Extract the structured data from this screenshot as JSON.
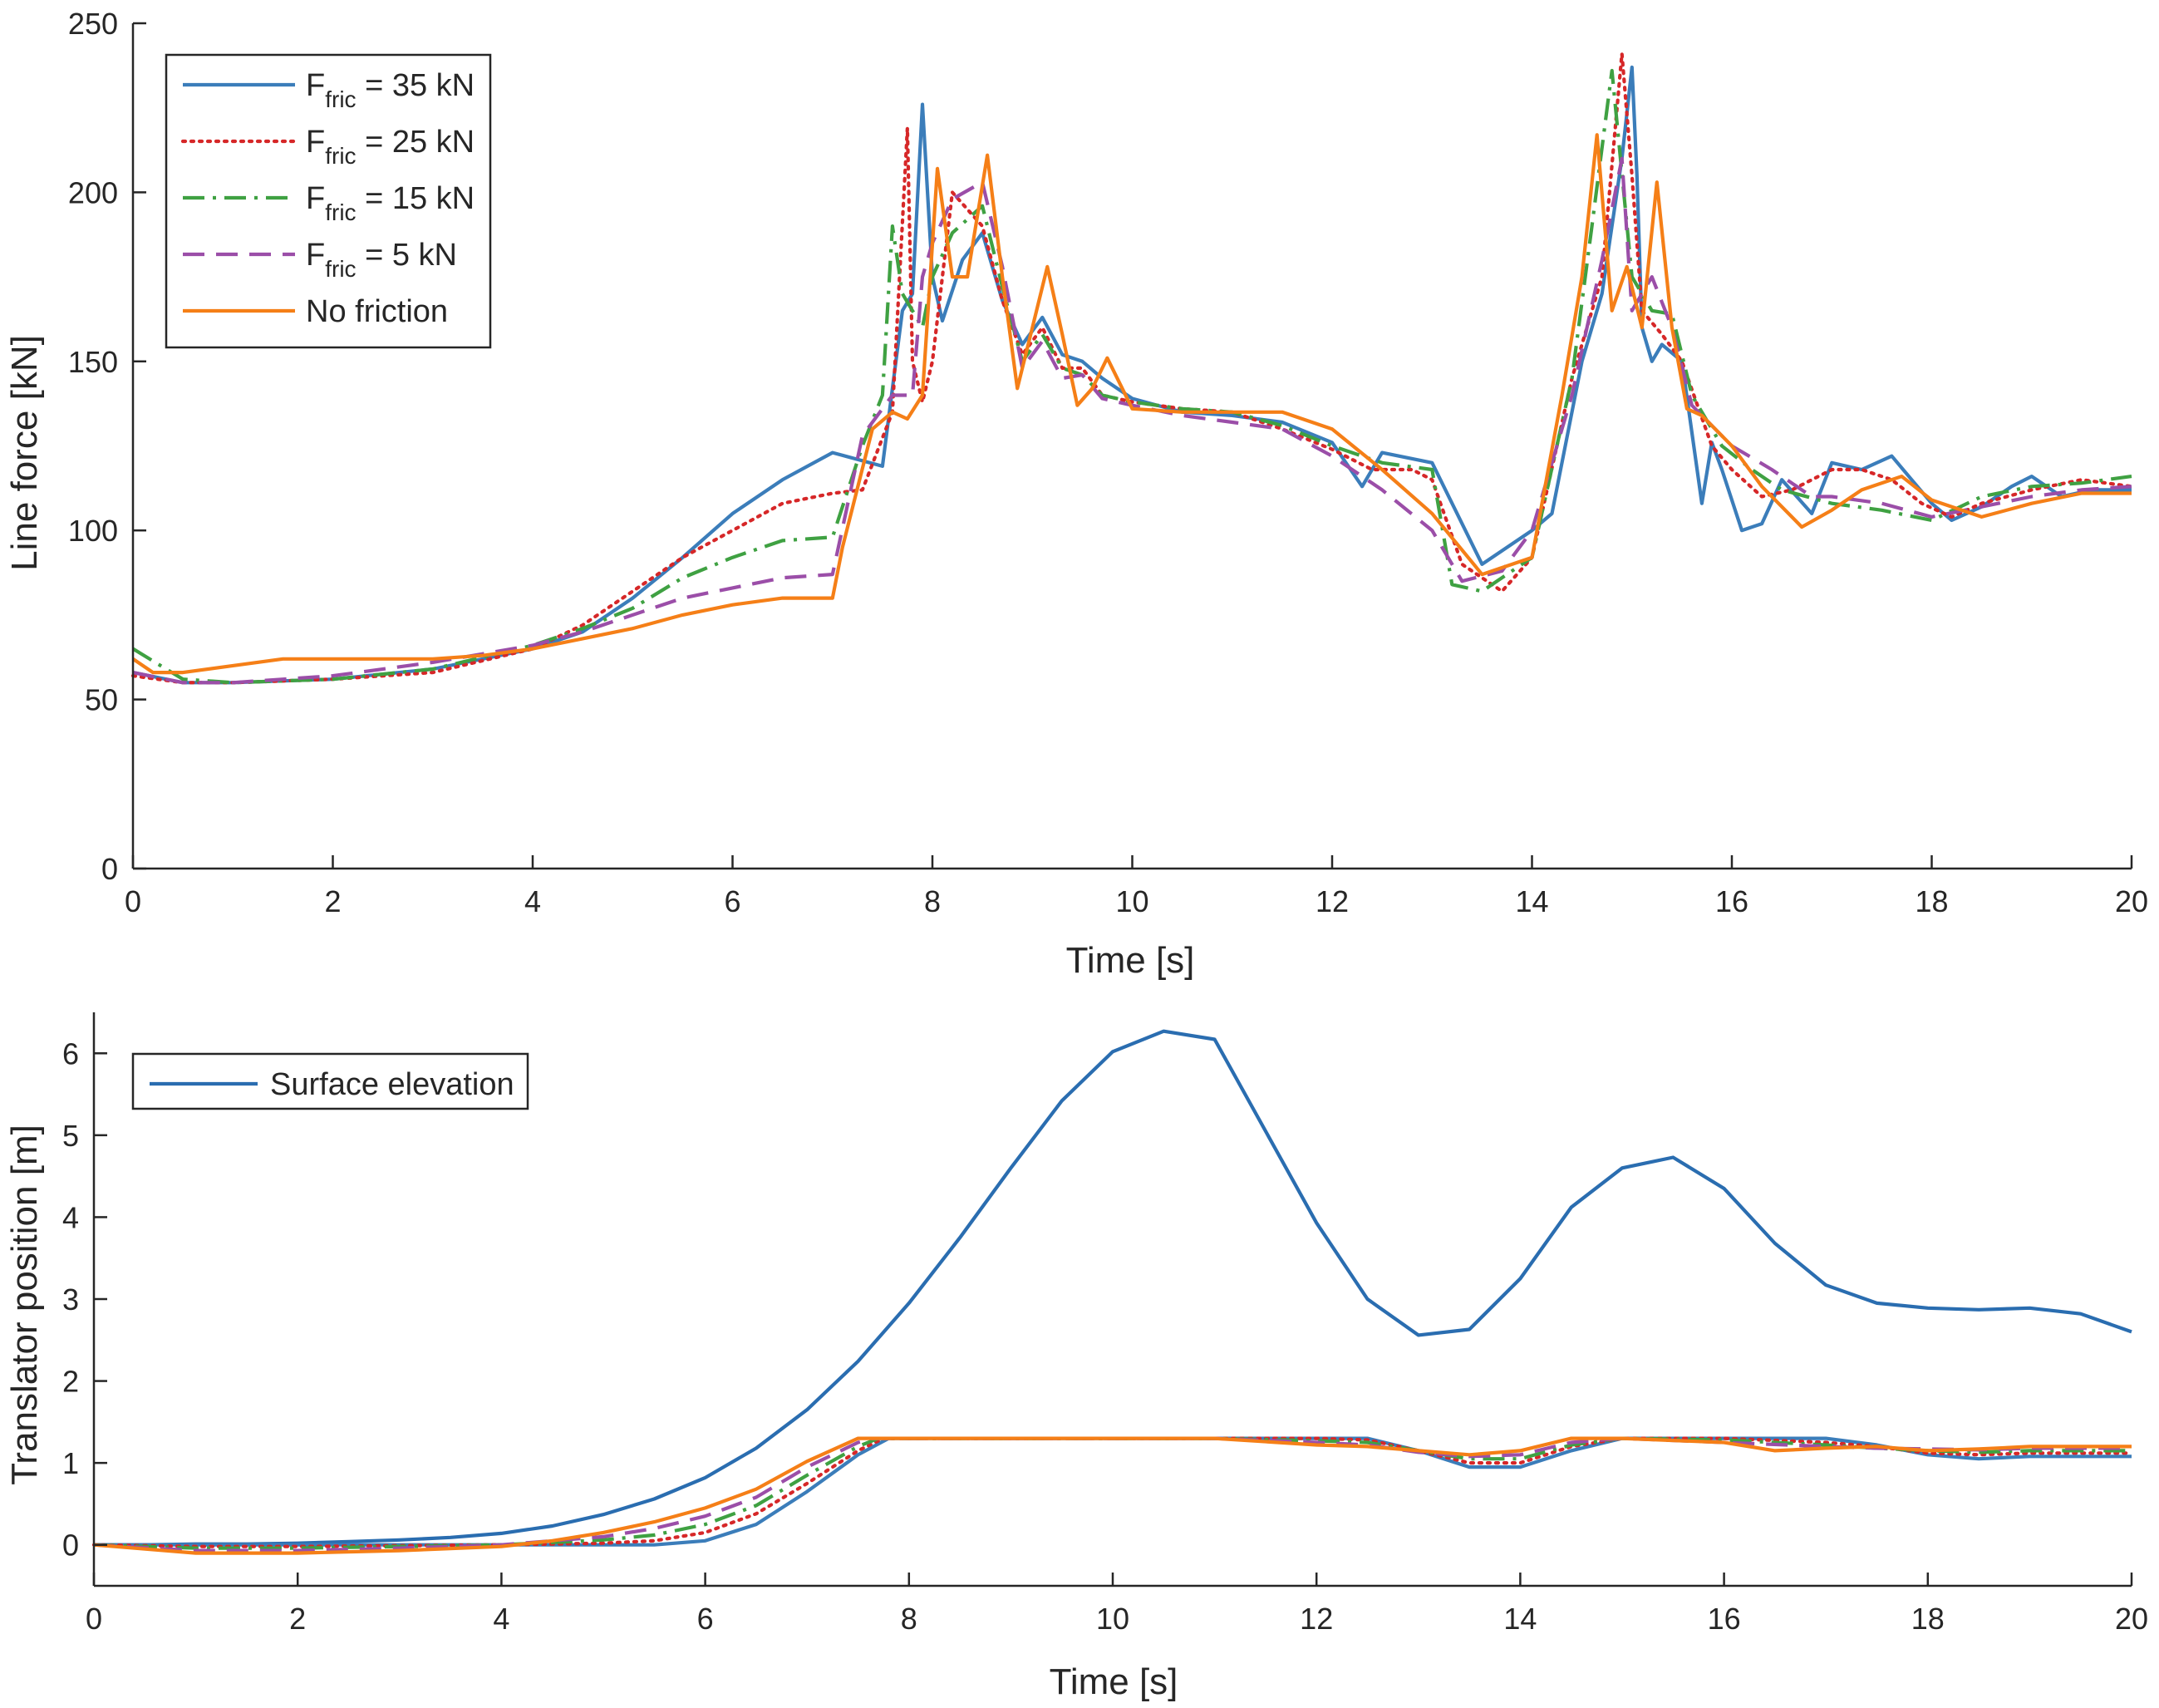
{
  "chart_data": [
    {
      "type": "line",
      "xlabel": "Time [s]",
      "ylabel": "Line force [kN]",
      "xlim": [
        0,
        20
      ],
      "ylim": [
        0,
        250
      ],
      "xticks": [
        "0",
        "2",
        "4",
        "6",
        "8",
        "10",
        "12",
        "14",
        "16",
        "18",
        "20"
      ],
      "yticks": [
        "0",
        "50",
        "100",
        "150",
        "200",
        "250"
      ],
      "legend": {
        "position": "top-left"
      },
      "series": [
        {
          "name": "F_fric = 35 kN",
          "label_main": "F",
          "label_sub": "fric",
          "label_rest": " = 35 kN",
          "color": "#3b7dba",
          "style": "solid",
          "x": [
            0,
            0.5,
            1,
            2,
            3,
            4,
            4.5,
            5,
            5.5,
            6,
            6.5,
            7,
            7.5,
            7.7,
            7.8,
            7.9,
            8,
            8.1,
            8.3,
            8.5,
            8.7,
            8.9,
            9.1,
            9.3,
            9.5,
            9.7,
            10,
            10.5,
            11,
            11.5,
            12,
            12.3,
            12.5,
            13,
            13.5,
            14,
            14.2,
            14.5,
            14.7,
            14.9,
            15,
            15.05,
            15.1,
            15.2,
            15.3,
            15.5,
            15.7,
            15.8,
            15.9,
            16.1,
            16.3,
            16.5,
            16.8,
            17,
            17.3,
            17.6,
            17.8,
            18,
            18.2,
            18.5,
            18.8,
            19,
            19.3,
            19.6,
            20
          ],
          "y": [
            58,
            55,
            55,
            56,
            59,
            65,
            70,
            80,
            92,
            105,
            115,
            123,
            119,
            165,
            170,
            226,
            175,
            162,
            180,
            188,
            168,
            155,
            163,
            152,
            150,
            145,
            139,
            135,
            134,
            132,
            126,
            113,
            123,
            120,
            90,
            100,
            105,
            150,
            170,
            210,
            237,
            205,
            160,
            150,
            155,
            150,
            108,
            126,
            118,
            100,
            102,
            115,
            105,
            120,
            118,
            122,
            115,
            108,
            103,
            107,
            113,
            116,
            110,
            112,
            112
          ]
        },
        {
          "name": "F_fric = 25 kN",
          "label_main": "F",
          "label_sub": "fric",
          "label_rest": " = 25 kN",
          "color": "#d62728",
          "style": "dotted",
          "x": [
            0,
            0.5,
            1,
            2,
            3,
            4,
            4.5,
            5,
            5.5,
            6,
            6.5,
            7,
            7.3,
            7.6,
            7.75,
            7.8,
            7.9,
            8,
            8.2,
            8.5,
            8.7,
            8.9,
            9.1,
            9.3,
            9.5,
            9.7,
            10,
            10.5,
            11,
            11.5,
            12,
            12.4,
            12.8,
            13,
            13.3,
            13.7,
            14,
            14.4,
            14.7,
            14.9,
            15,
            15.1,
            15.3,
            15.5,
            15.8,
            16,
            16.3,
            16.6,
            17,
            17.3,
            17.6,
            17.9,
            18.2,
            18.5,
            19,
            19.5,
            20
          ],
          "y": [
            57,
            55,
            55,
            56,
            58,
            65,
            72,
            82,
            92,
            100,
            108,
            111,
            112,
            135,
            219,
            150,
            138,
            150,
            200,
            190,
            168,
            152,
            160,
            148,
            148,
            140,
            138,
            136,
            135,
            130,
            124,
            118,
            118,
            115,
            90,
            82,
            92,
            145,
            175,
            241,
            205,
            165,
            158,
            150,
            125,
            118,
            110,
            112,
            118,
            118,
            115,
            108,
            104,
            108,
            112,
            115,
            113
          ]
        },
        {
          "name": "F_fric = 15 kN",
          "label_main": "F",
          "label_sub": "fric",
          "label_rest": " = 15 kN",
          "color": "#3fa142",
          "style": "dashdot",
          "x": [
            0,
            0.5,
            1,
            2,
            3,
            4,
            4.5,
            5,
            5.5,
            6,
            6.5,
            7,
            7.3,
            7.5,
            7.6,
            7.7,
            7.8,
            7.9,
            8,
            8.2,
            8.5,
            8.7,
            8.9,
            9.1,
            9.3,
            9.5,
            9.7,
            10,
            10.5,
            11,
            11.5,
            12,
            12.5,
            13,
            13.2,
            13.5,
            14,
            14.4,
            14.6,
            14.8,
            15,
            15.2,
            15.4,
            15.6,
            15.9,
            16.2,
            16.5,
            17,
            17.5,
            18,
            18.5,
            19,
            19.5,
            20
          ],
          "y": [
            65,
            56,
            55,
            56,
            59,
            66,
            71,
            77,
            86,
            92,
            97,
            98,
            125,
            140,
            190,
            170,
            165,
            160,
            175,
            188,
            196,
            172,
            150,
            158,
            148,
            146,
            140,
            138,
            136,
            135,
            131,
            125,
            120,
            118,
            84,
            82,
            92,
            145,
            190,
            236,
            175,
            165,
            164,
            140,
            125,
            118,
            112,
            108,
            106,
            103,
            110,
            113,
            114,
            116
          ]
        },
        {
          "name": "F_fric = 5 kN",
          "label_main": "F",
          "label_sub": "fric",
          "label_rest": " = 5 kN",
          "color": "#9b4ea8",
          "style": "dashed",
          "x": [
            0,
            0.5,
            1,
            2,
            3,
            4,
            4.5,
            5,
            5.5,
            6,
            6.5,
            7,
            7.3,
            7.6,
            7.8,
            7.9,
            8,
            8.2,
            8.5,
            8.7,
            8.9,
            9.1,
            9.3,
            9.5,
            9.7,
            10,
            10.5,
            11,
            11.5,
            12,
            12.5,
            13,
            13.3,
            13.7,
            14,
            14.4,
            14.7,
            14.9,
            15,
            15.2,
            15.4,
            15.6,
            16,
            16.4,
            16.8,
            17,
            17.5,
            18,
            18.5,
            19,
            19.5,
            20
          ],
          "y": [
            58,
            55,
            55,
            57,
            61,
            66,
            70,
            75,
            80,
            83,
            86,
            87,
            128,
            140,
            140,
            175,
            185,
            198,
            203,
            178,
            148,
            156,
            145,
            146,
            139,
            137,
            134,
            132,
            130,
            122,
            112,
            100,
            85,
            88,
            100,
            140,
            180,
            210,
            165,
            175,
            160,
            137,
            125,
            118,
            110,
            110,
            108,
            104,
            107,
            110,
            112,
            113
          ]
        },
        {
          "name": "No friction",
          "label_main": "No friction",
          "label_sub": "",
          "label_rest": "",
          "color": "#f57f17",
          "style": "solid",
          "x": [
            0,
            0.2,
            0.5,
            1,
            1.5,
            2,
            2.5,
            3,
            3.5,
            4,
            4.5,
            5,
            5.5,
            6,
            6.5,
            6.9,
            7,
            7.1,
            7.4,
            7.6,
            7.75,
            7.9,
            8.05,
            8.2,
            8.35,
            8.55,
            8.7,
            8.85,
            9,
            9.15,
            9.3,
            9.45,
            9.6,
            9.75,
            10,
            10.5,
            11,
            11.5,
            12,
            12.5,
            13,
            13.5,
            14,
            14.3,
            14.5,
            14.65,
            14.8,
            14.95,
            15.1,
            15.25,
            15.4,
            15.55,
            15.7,
            16,
            16.3,
            16.7,
            17,
            17.3,
            17.7,
            18,
            18.5,
            19,
            19.5,
            20
          ],
          "y": [
            62,
            58,
            58,
            60,
            62,
            62,
            62,
            62,
            63,
            65,
            68,
            71,
            75,
            78,
            80,
            80,
            80,
            95,
            130,
            135,
            133,
            140,
            207,
            175,
            175,
            211,
            175,
            142,
            160,
            178,
            158,
            137,
            142,
            151,
            136,
            135,
            135,
            135,
            130,
            118,
            105,
            87,
            92,
            140,
            175,
            217,
            165,
            178,
            160,
            203,
            160,
            136,
            134,
            125,
            113,
            101,
            106,
            112,
            116,
            109,
            104,
            108,
            111,
            111
          ]
        }
      ]
    },
    {
      "type": "line",
      "xlabel": "Time [s]",
      "ylabel": "Translator position [m]",
      "xlim": [
        0,
        20
      ],
      "ylim": [
        -0.5,
        6.5
      ],
      "xticks": [
        "0",
        "2",
        "4",
        "6",
        "8",
        "10",
        "12",
        "14",
        "16",
        "18",
        "20"
      ],
      "yticks": [
        "0",
        "1",
        "2",
        "3",
        "4",
        "5",
        "6"
      ],
      "legend": {
        "position": "top-left"
      },
      "series": [
        {
          "name": "Surface elevation",
          "color": "#2a6db0",
          "style": "solid",
          "x": [
            0,
            0.5,
            1,
            1.5,
            2,
            2.5,
            3,
            3.5,
            4,
            4.5,
            5,
            5.5,
            6,
            6.5,
            7,
            7.5,
            8,
            8.5,
            9,
            9.5,
            10,
            10.5,
            11,
            11.5,
            12,
            12.5,
            13,
            13.5,
            14,
            14.5,
            15,
            15.5,
            16,
            16.5,
            17,
            17.5,
            18,
            18.5,
            19,
            19.5,
            20
          ],
          "y": [
            0,
            0,
            0.01,
            0.01,
            0.02,
            0.04,
            0.06,
            0.09,
            0.14,
            0.23,
            0.37,
            0.56,
            0.82,
            1.18,
            1.65,
            2.24,
            2.95,
            3.75,
            4.6,
            5.42,
            6.02,
            6.27,
            6.17,
            5.05,
            3.93,
            3,
            2.56,
            2.63,
            3.25,
            4.12,
            4.6,
            4.73,
            4.35,
            3.68,
            3.17,
            2.95,
            2.89,
            2.87,
            2.89,
            2.82,
            2.6
          ]
        },
        {
          "name": "F_fric = 35 kN",
          "color": "#3b7dba",
          "style": "solid",
          "x": [
            0,
            1,
            2,
            3,
            4,
            5,
            5.5,
            6,
            6.5,
            7,
            7.5,
            7.8,
            8,
            9,
            10,
            11,
            12,
            12.5,
            13,
            13.5,
            14,
            14.5,
            15,
            16,
            17,
            17.5,
            18,
            18.5,
            19,
            20
          ],
          "y": [
            0,
            0,
            0,
            0,
            0,
            0,
            0,
            0.05,
            0.25,
            0.65,
            1.1,
            1.3,
            1.3,
            1.3,
            1.3,
            1.3,
            1.3,
            1.3,
            1.15,
            0.95,
            0.95,
            1.15,
            1.3,
            1.3,
            1.3,
            1.22,
            1.1,
            1.05,
            1.08,
            1.08
          ]
        },
        {
          "name": "F_fric = 25 kN",
          "color": "#d62728",
          "style": "dotted",
          "x": [
            0,
            1,
            2,
            3,
            4,
            5,
            5.5,
            6,
            6.5,
            7,
            7.5,
            7.75,
            8,
            9,
            10,
            11,
            12,
            12.5,
            13,
            13.5,
            14,
            14.5,
            15,
            16,
            17,
            17.5,
            18,
            18.5,
            19,
            20
          ],
          "y": [
            0,
            -0.02,
            -0.02,
            -0.01,
            0,
            0.02,
            0.05,
            0.15,
            0.38,
            0.75,
            1.15,
            1.3,
            1.3,
            1.3,
            1.3,
            1.3,
            1.3,
            1.28,
            1.15,
            1.0,
            1.0,
            1.2,
            1.3,
            1.3,
            1.25,
            1.2,
            1.12,
            1.1,
            1.12,
            1.12
          ]
        },
        {
          "name": "F_fric = 15 kN",
          "color": "#3fa142",
          "style": "dashdot",
          "x": [
            0,
            1,
            2,
            3,
            4,
            5,
            5.5,
            6,
            6.5,
            7,
            7.5,
            7.7,
            8,
            9,
            10,
            11,
            12,
            12.5,
            13,
            13.5,
            14,
            14.5,
            15,
            16,
            17,
            17.5,
            18,
            18.5,
            19,
            20
          ],
          "y": [
            0,
            -0.04,
            -0.04,
            -0.02,
            0,
            0.06,
            0.12,
            0.25,
            0.48,
            0.85,
            1.2,
            1.3,
            1.3,
            1.3,
            1.3,
            1.3,
            1.27,
            1.25,
            1.15,
            1.05,
            1.05,
            1.22,
            1.3,
            1.28,
            1.22,
            1.18,
            1.15,
            1.13,
            1.15,
            1.15
          ]
        },
        {
          "name": "F_fric = 5 kN",
          "color": "#9b4ea8",
          "style": "dashed",
          "x": [
            0,
            1,
            2,
            3,
            4,
            5,
            5.5,
            6,
            6.5,
            7,
            7.5,
            7.65,
            8,
            9,
            10,
            11,
            12,
            12.5,
            13,
            13.5,
            14,
            14.5,
            15,
            16,
            17,
            17.5,
            18,
            18.5,
            19,
            20
          ],
          "y": [
            0,
            -0.07,
            -0.07,
            -0.04,
            0,
            0.1,
            0.2,
            0.35,
            0.58,
            0.95,
            1.25,
            1.3,
            1.3,
            1.3,
            1.3,
            1.3,
            1.25,
            1.22,
            1.13,
            1.08,
            1.1,
            1.25,
            1.3,
            1.25,
            1.2,
            1.18,
            1.17,
            1.16,
            1.18,
            1.18
          ]
        },
        {
          "name": "No friction",
          "color": "#f57f17",
          "style": "solid",
          "x": [
            0,
            1,
            2,
            3,
            4,
            4.5,
            5,
            5.5,
            6,
            6.5,
            7,
            7.5,
            8,
            9,
            10,
            11,
            12,
            12.5,
            13,
            13.5,
            14,
            14.5,
            15,
            16,
            16.5,
            17,
            17.5,
            18,
            18.5,
            19,
            20
          ],
          "y": [
            0,
            -0.1,
            -0.1,
            -0.07,
            -0.02,
            0.05,
            0.15,
            0.28,
            0.45,
            0.68,
            1.02,
            1.3,
            1.3,
            1.3,
            1.3,
            1.3,
            1.22,
            1.2,
            1.15,
            1.1,
            1.15,
            1.3,
            1.3,
            1.25,
            1.15,
            1.18,
            1.2,
            1.15,
            1.17,
            1.2,
            1.2
          ]
        }
      ]
    }
  ]
}
